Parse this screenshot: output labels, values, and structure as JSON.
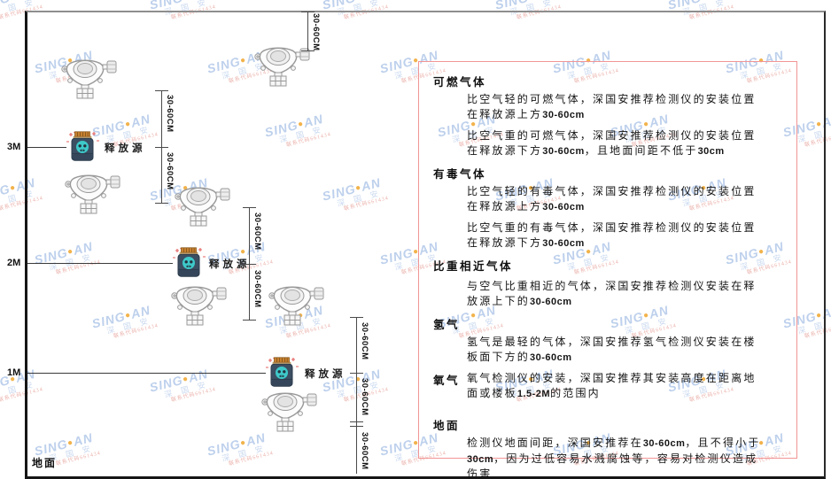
{
  "diagram": {
    "ground_label": "地面",
    "release_source_label": "释放源",
    "dim_label": "30-60CM",
    "height_labels": [
      "3M",
      "2M",
      "1M"
    ]
  },
  "watermark": {
    "brand_left": "SING",
    "dot": "●",
    "brand_right": "AN",
    "cn": "深 国 安",
    "red_line": "联系代码661434"
  },
  "panel": {
    "sections": [
      {
        "heading": "可燃气体",
        "paragraphs": [
          "比空气轻的可燃气体，深国安推荐检测仪的安装位置在释放源上方30-60cm",
          "比空气重的可燃气体，深国安推荐检测仪的安装位置在释放源下方30-60cm，且地面间距不低于30cm"
        ]
      },
      {
        "heading": "有毒气体",
        "paragraphs": [
          "比空气轻的有毒气体，深国安推荐检测仪的安装位置在释放源上方30-60cm",
          "比空气重的有毒气体，深国安推荐检测仪的安装位置在释放源下方30-60cm"
        ]
      },
      {
        "heading": "比重相近气体",
        "paragraphs": [
          "与空气比重相近的气体，深国安推荐检测仪安装在释放源上下的30-60cm"
        ]
      },
      {
        "heading": "氢气",
        "paragraphs": [
          "氢气是最轻的气体，深国安推荐氢气检测仪安装在楼板面下方的30-60cm"
        ]
      },
      {
        "heading": "氧气",
        "paragraphs": [
          "氧气检测仪的安装，深国安推荐其安装高度在距离地面或楼板1.5-2M的范围内"
        ]
      },
      {
        "heading": "地面",
        "paragraphs": [
          "检测仪地面间距，深国安推荐在30-60cm，且不得小于30cm，因为过低容易水溅腐蚀等，容易对检测仪造成伤害"
        ]
      }
    ]
  }
}
